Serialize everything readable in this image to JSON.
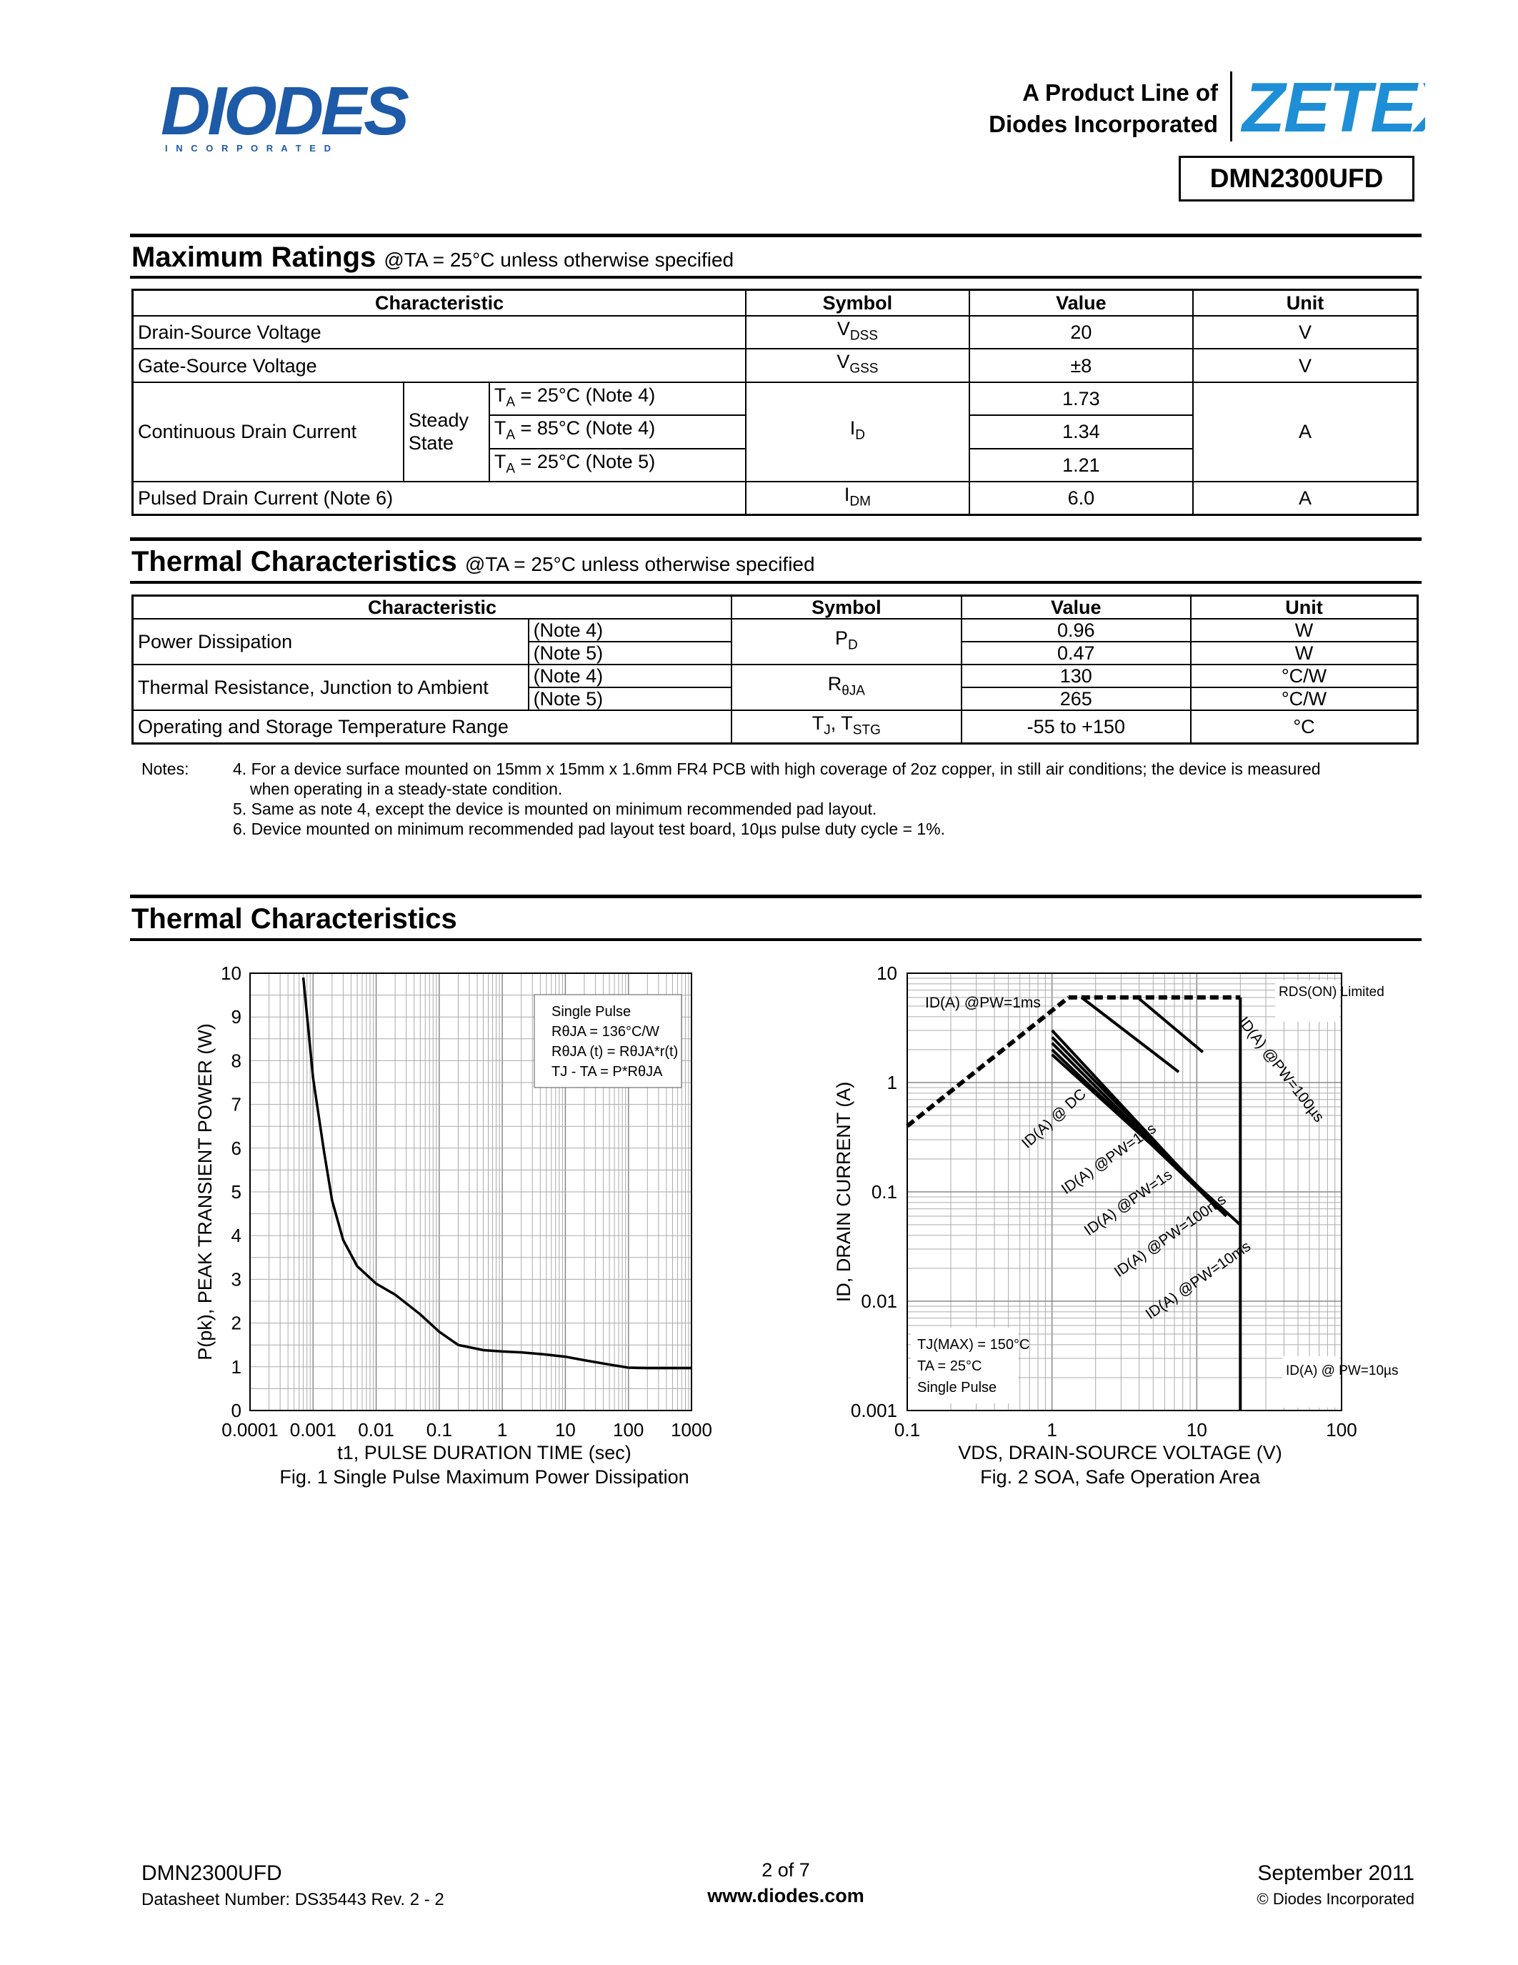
{
  "header": {
    "logo_text": "DIODES",
    "logo_sub": "I N C O R P O R A T E D",
    "product_line_1": "A Product Line of",
    "product_line_2": "Diodes Incorporated",
    "brand": "ZETEX",
    "part_number": "DMN2300UFD"
  },
  "max_ratings": {
    "title": "Maximum Ratings",
    "subtitle": "@TA = 25°C unless otherwise specified",
    "headers": [
      "Characteristic",
      "Symbol",
      "Value",
      "Unit"
    ],
    "rows": [
      {
        "char": "Drain-Source Voltage",
        "symbol": "VDSS",
        "value": "20",
        "unit": "V"
      },
      {
        "char": "Gate-Source Voltage",
        "symbol": "VGSS",
        "value": "±8",
        "unit": "V"
      },
      {
        "char": "Continuous Drain Current",
        "state": "Steady State",
        "symbol": "ID",
        "unit": "A",
        "sub": [
          {
            "cond": "TA = 25°C (Note 4)",
            "value": "1.73"
          },
          {
            "cond": "TA = 85°C (Note 4)",
            "value": "1.34"
          },
          {
            "cond": "TA = 25°C (Note 5)",
            "value": "1.21"
          }
        ]
      },
      {
        "char": "Pulsed Drain Current (Note 6)",
        "symbol": "IDM",
        "value": "6.0",
        "unit": "A"
      }
    ]
  },
  "thermal_table": {
    "title": "Thermal Characteristics",
    "subtitle": "@TA = 25°C unless otherwise specified",
    "headers": [
      "Characteristic",
      "Symbol",
      "Value",
      "Unit"
    ],
    "rows": [
      {
        "char": "Power Dissipation",
        "symbol": "PD",
        "sub": [
          {
            "note": "(Note 4)",
            "value": "0.96",
            "unit": "W"
          },
          {
            "note": "(Note 5)",
            "value": "0.47",
            "unit": "W"
          }
        ]
      },
      {
        "char": "Thermal Resistance, Junction to Ambient",
        "symbol": "RθJA",
        "sub": [
          {
            "note": "(Note 4)",
            "value": "130",
            "unit": "°C/W"
          },
          {
            "note": "(Note 5)",
            "value": "265",
            "unit": "°C/W"
          }
        ]
      },
      {
        "char": "Operating and Storage Temperature Range",
        "symbol": "TJ, TSTG",
        "value": "-55 to +150",
        "unit": "°C"
      }
    ]
  },
  "notes": {
    "label": "Notes:",
    "lines": [
      "4. For a device surface mounted on 15mm x 15mm x 1.6mm FR4 PCB with high coverage of 2oz copper, in still air conditions; the device is measured",
      "when operating in a steady-state condition.",
      "5. Same as note 4, except the device is mounted on minimum recommended pad layout.",
      "6. Device mounted on minimum recommended pad layout test board, 10µs pulse duty cycle = 1%."
    ]
  },
  "thermal_section": {
    "title": "Thermal Characteristics"
  },
  "chart_data": [
    {
      "type": "line",
      "caption": "Fig. 1  Single Pulse Maximum Power Dissipation",
      "xlabel": "t1, PULSE DURATION TIME (sec)",
      "ylabel": "P(pk), PEAK TRANSIENT POWER (W)",
      "x_scale": "log",
      "xlim": [
        0.0001,
        1000
      ],
      "ylim": [
        0,
        10
      ],
      "x_ticks": [
        "0.0001",
        "0.001",
        "0.01",
        "0.1",
        "1",
        "10",
        "100",
        "1000"
      ],
      "y_ticks": [
        "0",
        "1",
        "2",
        "3",
        "4",
        "5",
        "6",
        "7",
        "8",
        "9",
        "10"
      ],
      "grid": true,
      "legend": [
        "Single Pulse",
        "RθJA = 136°C/W",
        "RθJA (t) =  RθJA*r(t)",
        "TJ - TA = P*RθJA"
      ],
      "series": [
        {
          "x": [
            0.0007,
            0.001,
            0.0015,
            0.002,
            0.003,
            0.005,
            0.01,
            0.02,
            0.05,
            0.1,
            0.2,
            0.5,
            1,
            2,
            5,
            10,
            20,
            50,
            100,
            200,
            500,
            1000
          ],
          "y": [
            9.9,
            7.6,
            5.9,
            4.8,
            3.9,
            3.3,
            2.9,
            2.65,
            2.2,
            1.8,
            1.5,
            1.38,
            1.35,
            1.33,
            1.28,
            1.23,
            1.15,
            1.05,
            0.98,
            0.97,
            0.97,
            0.97
          ]
        }
      ]
    },
    {
      "type": "line",
      "caption": "Fig. 2 SOA, Safe Operation Area",
      "xlabel": "VDS, DRAIN-SOURCE VOLTAGE (V)",
      "ylabel": "ID, DRAIN CURRENT (A)",
      "x_scale": "log",
      "y_scale": "log",
      "xlim": [
        0.1,
        100
      ],
      "ylim": [
        0.001,
        10
      ],
      "x_ticks": [
        "0.1",
        "1",
        "10",
        "100"
      ],
      "y_ticks": [
        "0.001",
        "0.01",
        "0.1",
        "1",
        "10"
      ],
      "grid": true,
      "annotations": [
        "TJ(MAX) = 150°C",
        "TA = 25°C",
        "Single Pulse",
        "RDS(ON) Limited",
        "ID(A) @ PW=10µs"
      ],
      "series": [
        {
          "name": "ID(A) @PW=1ms",
          "x": [
            1.6,
            7.5
          ],
          "y": [
            6.0,
            1.25
          ]
        },
        {
          "name": "ID(A) @PW=100µs",
          "x": [
            3.9,
            11
          ],
          "y": [
            6.0,
            1.9
          ]
        },
        {
          "name": "ID(A) @ DC",
          "x": [
            1.0,
            10.5
          ],
          "y": [
            3.0,
            0.105
          ]
        },
        {
          "name": "ID(A) @PW=10s",
          "x": [
            1.0,
            12.5
          ],
          "y": [
            2.6,
            0.085
          ]
        },
        {
          "name": "ID(A) @PW=1s",
          "x": [
            1.0,
            14
          ],
          "y": [
            2.3,
            0.07
          ]
        },
        {
          "name": "ID(A) @PW=100ms",
          "x": [
            1.0,
            16
          ],
          "y": [
            2.0,
            0.06
          ]
        },
        {
          "name": "ID(A) @PW=10ms",
          "x": [
            1.0,
            20
          ],
          "y": [
            1.8,
            0.05
          ]
        },
        {
          "name": "RDS(ON) Limited",
          "x": [
            0.1,
            1.3
          ],
          "y": [
            0.4,
            6.0
          ]
        },
        {
          "name": "IDM limit",
          "x": [
            1.3,
            20
          ],
          "y": [
            6.0,
            6.0
          ]
        },
        {
          "name": "VDSS limit",
          "x": [
            20,
            20
          ],
          "y": [
            6.0,
            0.001
          ]
        }
      ]
    }
  ],
  "footer": {
    "part": "DMN2300UFD",
    "doc_number": "Datasheet Number: DS35443 Rev. 2 - 2",
    "page": "2 of 7",
    "url": "www.diodes.com",
    "date": "September 2011",
    "copyright": "© Diodes Incorporated"
  }
}
